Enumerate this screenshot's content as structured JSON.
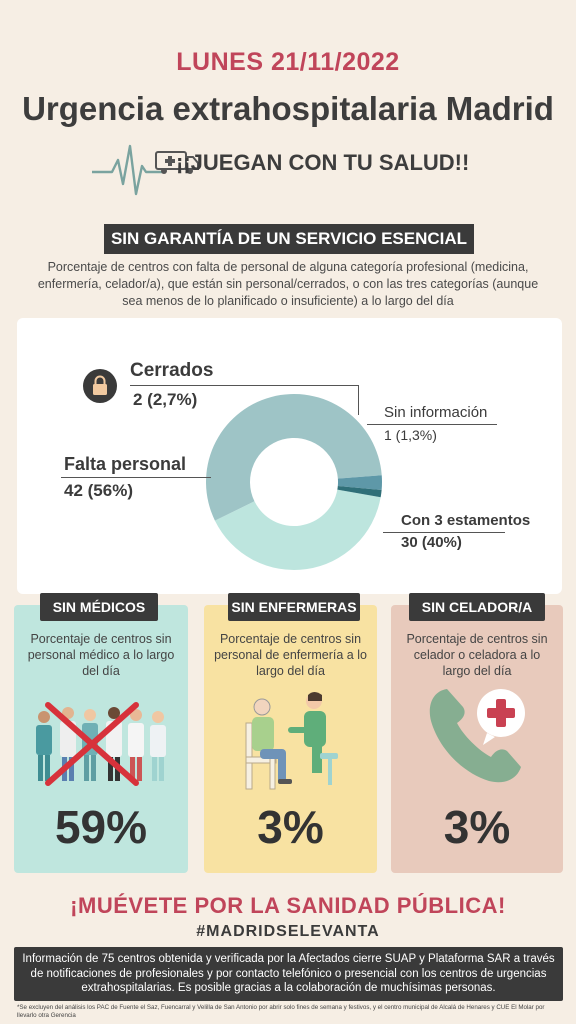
{
  "header": {
    "date": "LUNES 21/11/2022",
    "title": "Urgencia extrahospitalaria Madrid",
    "slogan": "¡¡JUEGAN CON TU SALUD!!"
  },
  "section": {
    "tag": "SIN GARANTÍA DE UN SERVICIO  ESENCIAL",
    "subtitle": "Porcentaje de centros con falta de personal de alguna categoría profesional (medicina, enfermería, celador/a), que están sin personal/cerrados, o con las tres categorías (aunque sea menos de lo planificado o insuficiente) a lo largo del día"
  },
  "chart_data": {
    "type": "pie",
    "categories": [
      "Falta personal",
      "Con 3 estamentos",
      "Sin información",
      "Cerrados"
    ],
    "values": [
      42,
      30,
      1,
      2
    ],
    "labels": [
      "42 (56%)",
      "30 (40%)",
      "1 (1,3%)",
      "2 (2,7%)"
    ],
    "colors": [
      "#9ec4c6",
      "#bde5de",
      "#2f6f78",
      "#5e98a8"
    ]
  },
  "cards": [
    {
      "tag": "SIN MÉDICOS",
      "desc": "Porcentaje de centros sin personal médico a lo largo del día",
      "pct": "59%",
      "bg": "#bfe6de"
    },
    {
      "tag": "SIN ENFERMERAS",
      "desc": "Porcentaje de centros sin personal de enfermería a lo largo del día",
      "pct": "3%",
      "bg": "#f8e2a2"
    },
    {
      "tag": "SIN CELADOR/A",
      "desc": "Porcentaje de centros sin celador o celadora a lo largo del día",
      "pct": "3%",
      "bg": "#e8cabc"
    }
  ],
  "footer": {
    "cta": "¡MUÉVETE POR LA SANIDAD PÚBLICA!",
    "hashtag": "#MADRIDSELEVANTA",
    "info": "Información de 75 centros obtenida y verificada por la Afectados cierre SUAP y Plataforma SAR a través de notificaciones de profesionales y por contacto telefónico o presencial con los centros de urgencias extrahospitalarias. Es posible gracias a la colaboración de muchísimas personas.",
    "note": "*Se excluyen del análisis los PAC de Fuente el Saz, Fuencarral y Velilla de San Antonio por abrir solo fines de semana y festivos, y el centro municipal de Alcalá de Henares y CUE El Molar por llevarlo otra Gerencia"
  },
  "icons": [
    "ecg-line-icon",
    "ambulance-icon",
    "lock-icon",
    "doctors-crossed-icon",
    "nurse-patient-icon",
    "phone-medical-icon"
  ]
}
